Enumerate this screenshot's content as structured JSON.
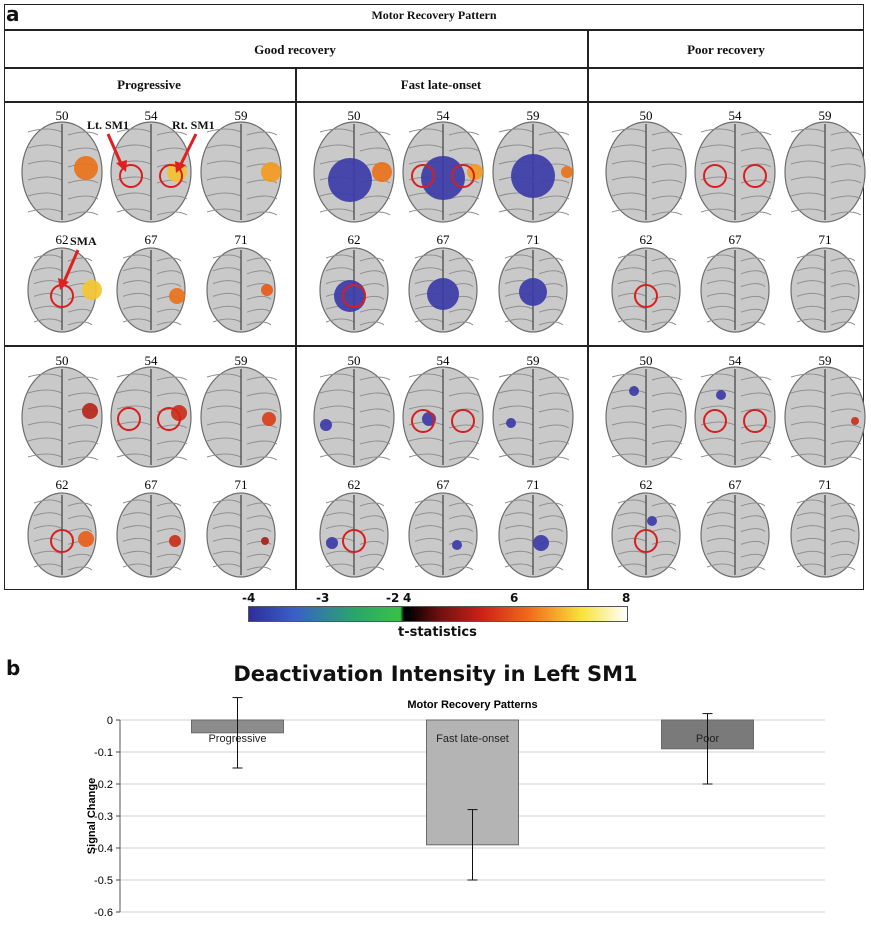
{
  "panel_a": {
    "label": "a",
    "title": "Motor Recovery Pattern",
    "group_good": "Good recovery",
    "group_poor": "Poor recovery",
    "sub_progressive": "Progressive",
    "sub_fast": "Fast late-onset",
    "slices_top": [
      "50",
      "54",
      "59"
    ],
    "slices_bottom": [
      "62",
      "67",
      "71"
    ],
    "annotation_lt": "Lt. SM1",
    "annotation_rt": "Rt. SM1",
    "annotation_sma": "SMA",
    "colorbar": {
      "ticks": [
        "-4",
        "-3",
        "-2",
        "4",
        "6",
        "8"
      ],
      "title": "t-statistics"
    }
  },
  "panel_b": {
    "label": "b"
  },
  "chart_data": {
    "type": "bar",
    "title": "Deactivation Intensity in Left SM1",
    "xlabel": "Motor Recovery Patterns",
    "ylabel": "Signal Change",
    "categories": [
      "Progressive",
      "Fast late-onset",
      "Poor"
    ],
    "values": [
      -0.04,
      -0.39,
      -0.09
    ],
    "error": [
      0.11,
      0.11,
      0.11
    ],
    "ylim": [
      -0.6,
      0
    ],
    "yticks": [
      "0",
      "-0.1",
      "-0.2",
      "-0.3",
      "-0.4",
      "-0.5",
      "-0.6"
    ],
    "grid": true,
    "colors": [
      "#8c8c8c",
      "#b4b4b4",
      "#7a7a7a"
    ]
  }
}
